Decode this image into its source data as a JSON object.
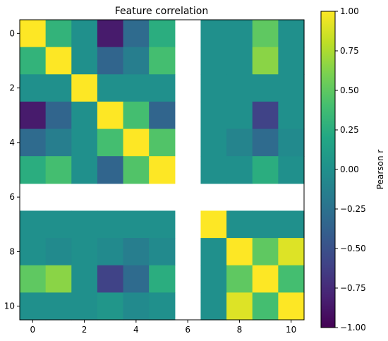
{
  "chart_data": {
    "type": "heatmap",
    "title": "Feature correlation",
    "xlabel": "",
    "ylabel": "",
    "x_ticks": [
      0,
      2,
      4,
      6,
      8,
      10
    ],
    "y_ticks": [
      0,
      2,
      4,
      6,
      8,
      10
    ],
    "colormap": "viridis",
    "colorbar": {
      "label": "Pearson r",
      "range": [
        -1.0,
        1.0
      ],
      "ticks": [
        "1.00",
        "0.75",
        "0.50",
        "0.25",
        "0.00",
        "−0.25",
        "−0.50",
        "−0.75",
        "−1.00"
      ]
    },
    "missing_row": 6,
    "missing_col": 6,
    "matrix": [
      [
        1.0,
        0.3,
        0.0,
        -0.85,
        -0.3,
        0.25,
        null,
        0.0,
        0.0,
        0.5,
        0.0
      ],
      [
        0.3,
        1.0,
        0.0,
        -0.35,
        -0.15,
        0.4,
        null,
        0.0,
        0.0,
        0.65,
        0.0
      ],
      [
        0.0,
        0.0,
        1.0,
        0.0,
        0.0,
        0.0,
        null,
        0.0,
        0.0,
        0.0,
        0.0
      ],
      [
        -0.85,
        -0.35,
        0.0,
        1.0,
        0.4,
        -0.35,
        null,
        0.0,
        0.0,
        -0.6,
        0.0
      ],
      [
        -0.3,
        -0.15,
        0.0,
        0.4,
        1.0,
        0.45,
        null,
        0.0,
        -0.1,
        -0.3,
        -0.05
      ],
      [
        0.25,
        0.4,
        0.0,
        -0.35,
        0.45,
        1.0,
        null,
        0.0,
        0.0,
        0.25,
        0.0
      ],
      [
        null,
        null,
        null,
        null,
        null,
        null,
        null,
        null,
        null,
        null,
        null
      ],
      [
        0.0,
        0.0,
        0.0,
        0.0,
        0.0,
        0.0,
        null,
        1.0,
        0.0,
        0.0,
        0.0
      ],
      [
        0.0,
        -0.05,
        0.0,
        -0.05,
        -0.15,
        -0.05,
        null,
        0.0,
        1.0,
        0.5,
        0.9
      ],
      [
        0.5,
        0.65,
        0.0,
        -0.6,
        -0.3,
        0.25,
        null,
        0.0,
        0.5,
        1.0,
        0.4
      ],
      [
        0.0,
        0.0,
        0.0,
        0.05,
        -0.05,
        0.0,
        null,
        0.0,
        0.9,
        0.4,
        1.0
      ]
    ]
  }
}
